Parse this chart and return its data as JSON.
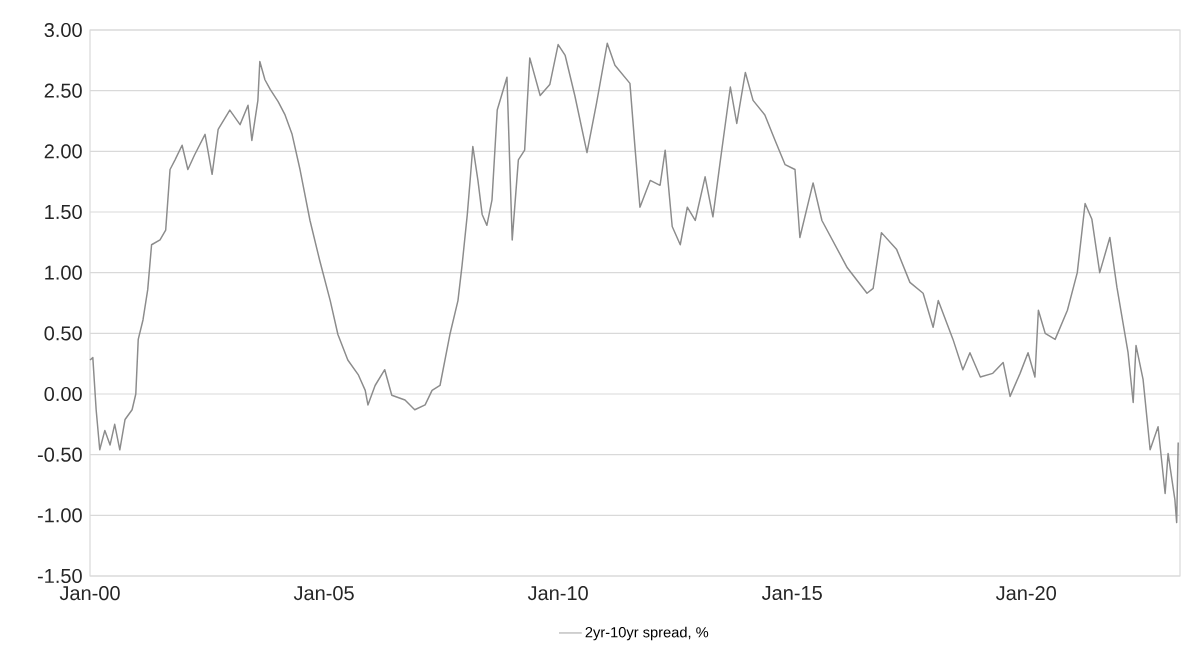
{
  "chart_data": {
    "type": "line",
    "x": [
      "2000-01-01",
      "2000-01-23",
      "2000-02-18",
      "2000-03-17",
      "2000-04-26",
      "2000-06-06",
      "2000-07-12",
      "2000-08-21",
      "2000-10-01",
      "2000-11-25",
      "2000-12-24",
      "2001-01-12",
      "2001-02-18",
      "2001-03-27",
      "2001-04-26",
      "2001-07-01",
      "2001-08-14",
      "2001-09-17",
      "2001-10-26",
      "2001-12-20",
      "2002-02-03",
      "2002-03-27",
      "2002-06-17",
      "2002-08-11",
      "2002-09-27",
      "2002-12-27",
      "2003-03-17",
      "2003-05-18",
      "2003-06-17",
      "2003-08-03",
      "2003-08-18",
      "2003-09-27",
      "2003-11-07",
      "2004-01-08",
      "2004-03-02",
      "2004-04-26",
      "2004-06-27",
      "2004-09-13",
      "2004-11-28",
      "2005-02-18",
      "2005-04-19",
      "2005-07-05",
      "2005-09-24",
      "2005-11-18",
      "2005-12-09",
      "2006-02-03",
      "2006-04-19",
      "2006-06-13",
      "2006-09-24",
      "2006-12-09",
      "2007-02-28",
      "2007-04-23",
      "2007-06-24",
      "2007-09-09",
      "2007-11-11",
      "2007-12-13",
      "2008-01-23",
      "2008-02-14",
      "2008-03-06",
      "2008-04-15",
      "2008-05-18",
      "2008-06-24",
      "2008-08-03",
      "2008-09-13",
      "2008-11-28",
      "2009-01-08",
      "2009-02-25",
      "2009-04-15",
      "2009-05-25",
      "2009-08-14",
      "2009-10-28",
      "2010-01-01",
      "2010-02-25",
      "2010-05-11",
      "2010-08-14",
      "2010-10-28",
      "2011-01-19",
      "2011-03-20",
      "2011-07-15",
      "2011-08-25",
      "2011-10-01",
      "2011-12-20",
      "2012-03-06",
      "2012-04-15",
      "2012-06-09",
      "2012-08-11",
      "2012-10-05",
      "2012-12-06",
      "2013-02-21",
      "2013-04-23",
      "2013-06-17",
      "2013-09-06",
      "2013-10-26",
      "2014-01-01",
      "2014-03-02",
      "2014-06-02",
      "2014-08-21",
      "2014-11-07",
      "2015-01-23",
      "2015-03-02",
      "2015-06-13",
      "2015-08-21",
      "2016-03-06",
      "2016-08-07",
      "2016-09-24",
      "2016-11-28",
      "2017-03-27",
      "2017-07-08",
      "2017-10-19",
      "2018-01-05",
      "2018-02-14",
      "2018-06-09",
      "2018-08-25",
      "2018-10-19",
      "2019-01-08",
      "2019-04-15",
      "2019-07-05",
      "2019-08-28",
      "2019-11-14",
      "2020-01-15",
      "2020-03-09",
      "2020-04-05",
      "2020-05-28",
      "2020-08-14",
      "2020-11-18",
      "2021-02-03",
      "2021-04-05",
      "2021-05-28",
      "2021-07-28",
      "2021-10-15",
      "2021-12-09",
      "2022-03-06",
      "2022-04-15",
      "2022-05-07",
      "2022-07-01",
      "2022-08-25",
      "2022-10-26",
      "2022-12-20",
      "2023-01-12",
      "2023-03-06",
      "2023-03-20",
      "2023-04-01"
    ],
    "series": [
      {
        "name": "2yr-10yr spread, %",
        "color": "#8c8c8c",
        "values": [
          0.28,
          0.3,
          -0.13,
          -0.46,
          -0.3,
          -0.42,
          -0.25,
          -0.46,
          -0.21,
          -0.13,
          0.0,
          0.45,
          0.61,
          0.86,
          1.23,
          1.27,
          1.35,
          1.85,
          1.93,
          2.05,
          1.85,
          1.97,
          2.14,
          1.81,
          2.18,
          2.34,
          2.22,
          2.38,
          2.09,
          2.42,
          2.74,
          2.59,
          2.51,
          2.41,
          2.3,
          2.14,
          1.85,
          1.43,
          1.1,
          0.77,
          0.49,
          0.28,
          0.16,
          0.03,
          -0.09,
          0.07,
          0.2,
          -0.01,
          -0.05,
          -0.13,
          -0.09,
          0.03,
          0.07,
          0.49,
          0.77,
          1.06,
          1.48,
          1.76,
          2.04,
          1.76,
          1.48,
          1.39,
          1.6,
          2.34,
          2.61,
          1.27,
          1.93,
          2.01,
          2.77,
          2.46,
          2.55,
          2.88,
          2.79,
          2.46,
          1.99,
          2.4,
          2.89,
          2.71,
          2.56,
          2.01,
          1.54,
          1.76,
          1.72,
          2.01,
          1.38,
          1.23,
          1.54,
          1.43,
          1.79,
          1.46,
          1.9,
          2.53,
          2.23,
          2.65,
          2.42,
          2.3,
          2.09,
          1.89,
          1.85,
          1.29,
          1.74,
          1.43,
          1.04,
          0.83,
          0.87,
          1.33,
          1.19,
          0.92,
          0.83,
          0.55,
          0.77,
          0.45,
          0.2,
          0.34,
          0.14,
          0.17,
          0.26,
          -0.02,
          0.17,
          0.34,
          0.14,
          0.69,
          0.5,
          0.45,
          0.69,
          1.0,
          1.57,
          1.44,
          1.0,
          1.29,
          0.88,
          0.34,
          -0.07,
          0.4,
          0.12,
          -0.46,
          -0.27,
          -0.82,
          -0.49,
          -0.87,
          -1.06,
          -0.4
        ]
      }
    ],
    "xlim": [
      "2000-01-01",
      "2023-04-15"
    ],
    "xticks": [
      {
        "value": "2000-01-01",
        "label": "Jan-00"
      },
      {
        "value": "2005-01-01",
        "label": "Jan-05"
      },
      {
        "value": "2010-01-01",
        "label": "Jan-10"
      },
      {
        "value": "2015-01-01",
        "label": "Jan-15"
      },
      {
        "value": "2020-01-01",
        "label": "Jan-20"
      }
    ],
    "ylim": [
      -1.5,
      3.0
    ],
    "yticks": [
      {
        "value": -1.5,
        "label": "-1.50"
      },
      {
        "value": -1.0,
        "label": "-1.00"
      },
      {
        "value": -0.5,
        "label": "-0.50"
      },
      {
        "value": 0,
        "label": "0.00"
      },
      {
        "value": 0.5,
        "label": "0.50"
      },
      {
        "value": 1.0,
        "label": "1.00"
      },
      {
        "value": 1.5,
        "label": "1.50"
      },
      {
        "value": 2.0,
        "label": "2.00"
      },
      {
        "value": 2.5,
        "label": "2.50"
      },
      {
        "value": 3.0,
        "label": "3.00"
      }
    ],
    "grid": "y",
    "legend": "bottom",
    "line_style": "solid"
  }
}
